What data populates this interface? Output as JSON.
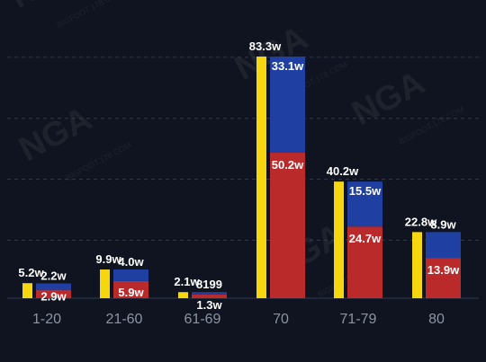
{
  "colors": {
    "background": "#0f1420",
    "total": "#f5d60f",
    "top_segment": "#1f3fa3",
    "bottom_segment": "#bb2a2a",
    "gridline": "#2f3a52",
    "label": "#ffffff",
    "tick": "#8c93a3"
  },
  "watermark": {
    "logo_text": "NGA",
    "site_text": "BIGFOOT.178.COM"
  },
  "chart_data": {
    "type": "bar",
    "title": "",
    "xlabel": "",
    "ylabel": "",
    "ylim": [
      0,
      90
    ],
    "unit": "w",
    "grid": "horizontal dashed",
    "legend": "none",
    "categories": [
      "1-20",
      "21-60",
      "61-69",
      "70",
      "71-79",
      "80"
    ],
    "series": [
      {
        "role": "total",
        "values": [
          5.2,
          9.9,
          2.1,
          83.3,
          40.2,
          22.8
        ],
        "labels": [
          "5.2w",
          "9.9w",
          "2.1w",
          "83.3w",
          "40.2w",
          "22.8w"
        ]
      },
      {
        "role": "stack-bottom",
        "values": [
          2.9,
          5.9,
          1.3,
          50.2,
          24.7,
          13.9
        ],
        "labels": [
          "2.9w",
          "5.9w",
          "1.3w",
          "50.2w",
          "24.7w",
          "13.9w"
        ]
      },
      {
        "role": "stack-top",
        "values": [
          2.2,
          4.0,
          0.8199,
          33.1,
          15.5,
          8.9
        ],
        "labels": [
          "2.2w",
          "4.0w",
          "8199",
          "33.1w",
          "15.5w",
          "8.9w"
        ]
      }
    ]
  }
}
